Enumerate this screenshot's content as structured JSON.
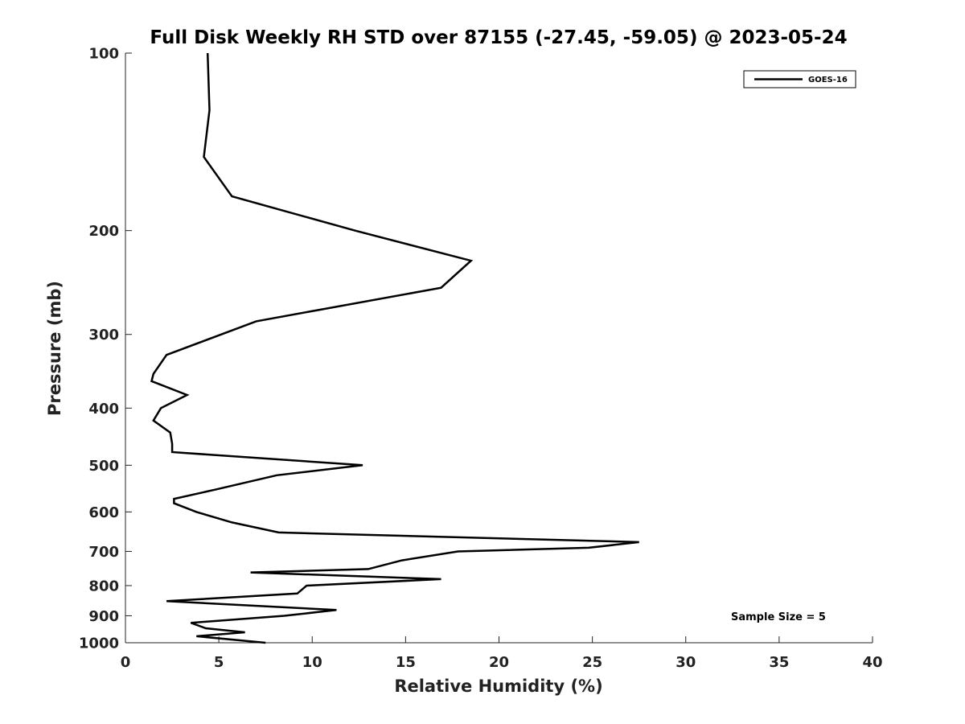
{
  "chart_data": {
    "type": "line",
    "title": "Full Disk Weekly RH STD over 87155 (-27.45, -59.05) @ 2023-05-24",
    "xlabel": "Relative Humidity (%)",
    "ylabel": "Pressure (mb)",
    "xlim": [
      0,
      40
    ],
    "ylim": [
      100,
      1000
    ],
    "yscale": "log",
    "y_reversed": true,
    "x_ticks": [
      0,
      5,
      10,
      15,
      20,
      25,
      30,
      35,
      40
    ],
    "x_tick_labels": [
      "0",
      "5",
      "10",
      "15",
      "20",
      "25",
      "30",
      "35",
      "40"
    ],
    "y_ticks": [
      100,
      200,
      300,
      400,
      500,
      600,
      700,
      800,
      900,
      1000
    ],
    "y_tick_labels": [
      "100",
      "200",
      "300",
      "400",
      "500",
      "600",
      "700",
      "800",
      "900",
      "1000"
    ],
    "grid": false,
    "legend": {
      "position": "top-right",
      "entries": [
        "GOES-16"
      ]
    },
    "annotation": "Sample Size = 5",
    "series": [
      {
        "name": "GOES-16",
        "color": "#000000",
        "points": [
          [
            4.4,
            100
          ],
          [
            4.5,
            125
          ],
          [
            4.2,
            150
          ],
          [
            5.7,
            175
          ],
          [
            12.3,
            200
          ],
          [
            18.5,
            225
          ],
          [
            16.9,
            250
          ],
          [
            7.0,
            285
          ],
          [
            2.2,
            325
          ],
          [
            1.5,
            350
          ],
          [
            1.4,
            360
          ],
          [
            3.3,
            380
          ],
          [
            1.9,
            400
          ],
          [
            1.5,
            420
          ],
          [
            2.4,
            440
          ],
          [
            2.5,
            460
          ],
          [
            2.5,
            475
          ],
          [
            12.7,
            500
          ],
          [
            8.1,
            520
          ],
          [
            4.8,
            550
          ],
          [
            2.6,
            570
          ],
          [
            2.6,
            580
          ],
          [
            3.8,
            600
          ],
          [
            5.7,
            625
          ],
          [
            8.2,
            650
          ],
          [
            27.5,
            675
          ],
          [
            24.8,
            690
          ],
          [
            17.8,
            700
          ],
          [
            14.8,
            725
          ],
          [
            13.0,
            750
          ],
          [
            6.7,
            760
          ],
          [
            16.9,
            780
          ],
          [
            9.7,
            800
          ],
          [
            9.2,
            825
          ],
          [
            2.2,
            850
          ],
          [
            11.3,
            880
          ],
          [
            8.5,
            900
          ],
          [
            3.5,
            925
          ],
          [
            4.3,
            945
          ],
          [
            6.4,
            960
          ],
          [
            3.8,
            975
          ],
          [
            7.5,
            1000
          ]
        ]
      }
    ]
  }
}
